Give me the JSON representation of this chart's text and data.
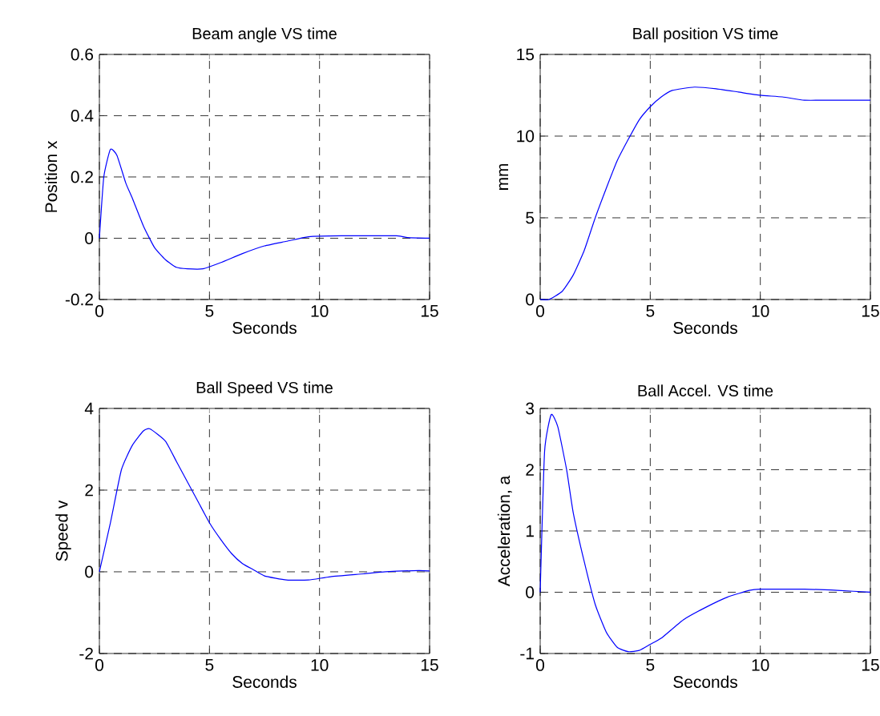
{
  "chart_data": [
    {
      "type": "line",
      "title": "Beam angle VS time",
      "xlabel": "Seconds",
      "ylabel": "Position x",
      "xlim": [
        0,
        15
      ],
      "ylim": [
        -0.2,
        0.6
      ],
      "xticks": [
        0,
        5,
        10,
        15
      ],
      "yticks": [
        -0.2,
        0,
        0.2,
        0.4,
        0.6
      ],
      "grid": true,
      "line_style": "solid",
      "series": [
        {
          "color": "#0000ff",
          "x": [
            0,
            0.2,
            0.5,
            0.8,
            1.2,
            1.5,
            2,
            2.5,
            3,
            3.5,
            4,
            4.7,
            5.5,
            6.5,
            7.5,
            8.5,
            9.5,
            11,
            13.5,
            14,
            15
          ],
          "values": [
            0,
            0.2,
            0.29,
            0.27,
            0.18,
            0.13,
            0.04,
            -0.03,
            -0.07,
            -0.095,
            -0.1,
            -0.1,
            -0.08,
            -0.05,
            -0.025,
            -0.01,
            0.005,
            0.008,
            0.008,
            0.002,
            0
          ]
        }
      ]
    },
    {
      "type": "line",
      "title": "Ball position VS time",
      "xlabel": "Seconds",
      "ylabel": "mm",
      "xlim": [
        0,
        15
      ],
      "ylim": [
        0,
        15
      ],
      "xticks": [
        0,
        5,
        10,
        15
      ],
      "yticks": [
        0,
        5,
        10,
        15
      ],
      "grid": true,
      "line_style": "solid",
      "series": [
        {
          "color": "#0000ff",
          "x": [
            0,
            0.4,
            1,
            1.5,
            2,
            2.5,
            3,
            3.5,
            4,
            4.5,
            5,
            5.5,
            6,
            7,
            8,
            9,
            10,
            11,
            12,
            13,
            15
          ],
          "values": [
            0,
            0,
            0.5,
            1.5,
            3,
            5,
            6.8,
            8.5,
            9.8,
            11,
            11.8,
            12.4,
            12.8,
            13,
            12.9,
            12.7,
            12.5,
            12.4,
            12.2,
            12.2,
            12.2
          ]
        }
      ]
    },
    {
      "type": "line",
      "title": "Ball Speed VS time",
      "xlabel": "Seconds",
      "ylabel": "Speed v",
      "xlim": [
        0,
        15
      ],
      "ylim": [
        -2,
        4
      ],
      "xticks": [
        0,
        5,
        10,
        15
      ],
      "yticks": [
        -2,
        0,
        2,
        4
      ],
      "grid": true,
      "line_style": "solid",
      "series": [
        {
          "color": "#0000ff",
          "x": [
            0,
            0.5,
            1,
            1.5,
            2,
            2.3,
            3,
            3.5,
            4,
            4.5,
            5,
            5.5,
            6,
            6.5,
            7,
            7.5,
            8.5,
            9.5,
            10.5,
            12,
            13,
            14.5,
            15
          ],
          "values": [
            0,
            1.2,
            2.5,
            3.1,
            3.45,
            3.5,
            3.2,
            2.7,
            2.2,
            1.7,
            1.2,
            0.8,
            0.45,
            0.2,
            0.05,
            -0.1,
            -0.2,
            -0.2,
            -0.12,
            -0.05,
            0,
            0.03,
            0.02
          ]
        }
      ]
    },
    {
      "type": "line",
      "title": "Ball Accel. VS time",
      "xlabel": "Seconds",
      "ylabel": "Acceleration, a",
      "xlim": [
        0,
        15
      ],
      "ylim": [
        -1,
        3
      ],
      "xticks": [
        0,
        5,
        10,
        15
      ],
      "yticks": [
        -1,
        0,
        1,
        2,
        3
      ],
      "grid": true,
      "line_style": "solid",
      "series": [
        {
          "color": "#0000ff",
          "x": [
            0,
            0.2,
            0.5,
            0.8,
            1.2,
            1.5,
            2,
            2.5,
            3,
            3.5,
            4,
            4.5,
            5,
            5.5,
            6.5,
            7.5,
            8.5,
            9.5,
            10,
            12,
            13.5,
            15
          ],
          "values": [
            0,
            2.3,
            2.9,
            2.7,
            2.0,
            1.3,
            0.5,
            -0.2,
            -0.65,
            -0.9,
            -0.97,
            -0.95,
            -0.85,
            -0.75,
            -0.45,
            -0.25,
            -0.08,
            0.03,
            0.05,
            0.05,
            0.03,
            0
          ]
        }
      ]
    }
  ]
}
